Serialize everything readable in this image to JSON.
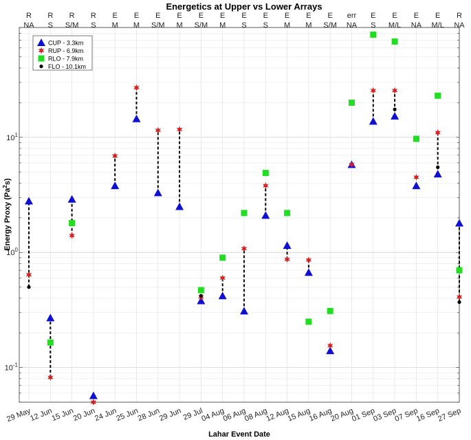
{
  "chart_data": {
    "type": "scatter",
    "title": "Energetics at Upper vs Lower Arrays",
    "xlabel": "Lahar Event Date",
    "ylabel_main": "Energy Proxy (Pa",
    "ylabel_sup": "2",
    "ylabel_tail": "s)",
    "yscale": "log",
    "ylim": [
      0.05,
      90
    ],
    "grid": true,
    "legend_position": "top-left",
    "categories": [
      "29 May",
      "12 Jun",
      "15 Jun",
      "20 Jun",
      "24 Jun",
      "25 Jun",
      "28 Jun",
      "29 Jun",
      "29 Jul",
      "04 Aug",
      "06 Aug",
      "08 Aug",
      "12 Aug",
      "15 Aug",
      "16 Aug",
      "20 Aug",
      "01 Sep",
      "03 Sep",
      "07 Sep",
      "16 Sep",
      "27 Sep"
    ],
    "top_row1": [
      "R",
      "R",
      "R",
      "R",
      "E",
      "E",
      "E",
      "E",
      "E",
      "E",
      "E",
      "E",
      "E",
      "E",
      "E",
      "err",
      "E",
      "E",
      "E",
      "E",
      "R"
    ],
    "top_row2": [
      "NA",
      "S",
      "S/M",
      "S",
      "M",
      "M",
      "S/M",
      "M",
      "S/M",
      "M",
      "S",
      "S",
      "M",
      "M",
      "S/M",
      "NA",
      "S",
      "M/L",
      "NA",
      "M/L",
      "NA"
    ],
    "y_ticks": [
      {
        "value": 0.1,
        "base": "10",
        "exp": "-1"
      },
      {
        "value": 1,
        "base": "10",
        "exp": "0"
      },
      {
        "value": 10,
        "base": "10",
        "exp": "1"
      }
    ],
    "series": [
      {
        "name": "CUP - 3.3km",
        "marker": "triangle",
        "color": "#1010d0",
        "values": [
          2.8,
          0.27,
          2.9,
          0.057,
          3.8,
          14.5,
          3.3,
          2.5,
          0.38,
          0.42,
          0.31,
          2.1,
          1.15,
          0.67,
          0.14,
          5.8,
          13.8,
          15.3,
          3.8,
          4.8,
          1.8
        ]
      },
      {
        "name": "RUP - 6.9km",
        "marker": "star",
        "color": "#d42020",
        "values": [
          0.64,
          0.082,
          1.4,
          0.05,
          6.9,
          27.0,
          11.5,
          11.7,
          0.41,
          0.6,
          1.08,
          3.8,
          0.87,
          0.86,
          0.155,
          5.8,
          25.5,
          25.5,
          4.5,
          11.0,
          0.41
        ]
      },
      {
        "name": "RLO - 7.9km",
        "marker": "square",
        "color": "#22dd22",
        "values": [
          null,
          0.165,
          1.8,
          null,
          null,
          null,
          null,
          null,
          0.47,
          0.9,
          2.2,
          4.9,
          2.2,
          0.25,
          0.31,
          20.0,
          78.0,
          68.0,
          9.7,
          23.0,
          0.7
        ]
      },
      {
        "name": "FLO - 10.1km",
        "marker": "dot",
        "color": "#000000",
        "values": [
          0.5,
          null,
          null,
          null,
          null,
          null,
          null,
          null,
          0.42,
          null,
          null,
          null,
          null,
          null,
          null,
          null,
          null,
          17.5,
          null,
          5.5,
          0.37
        ]
      }
    ]
  }
}
